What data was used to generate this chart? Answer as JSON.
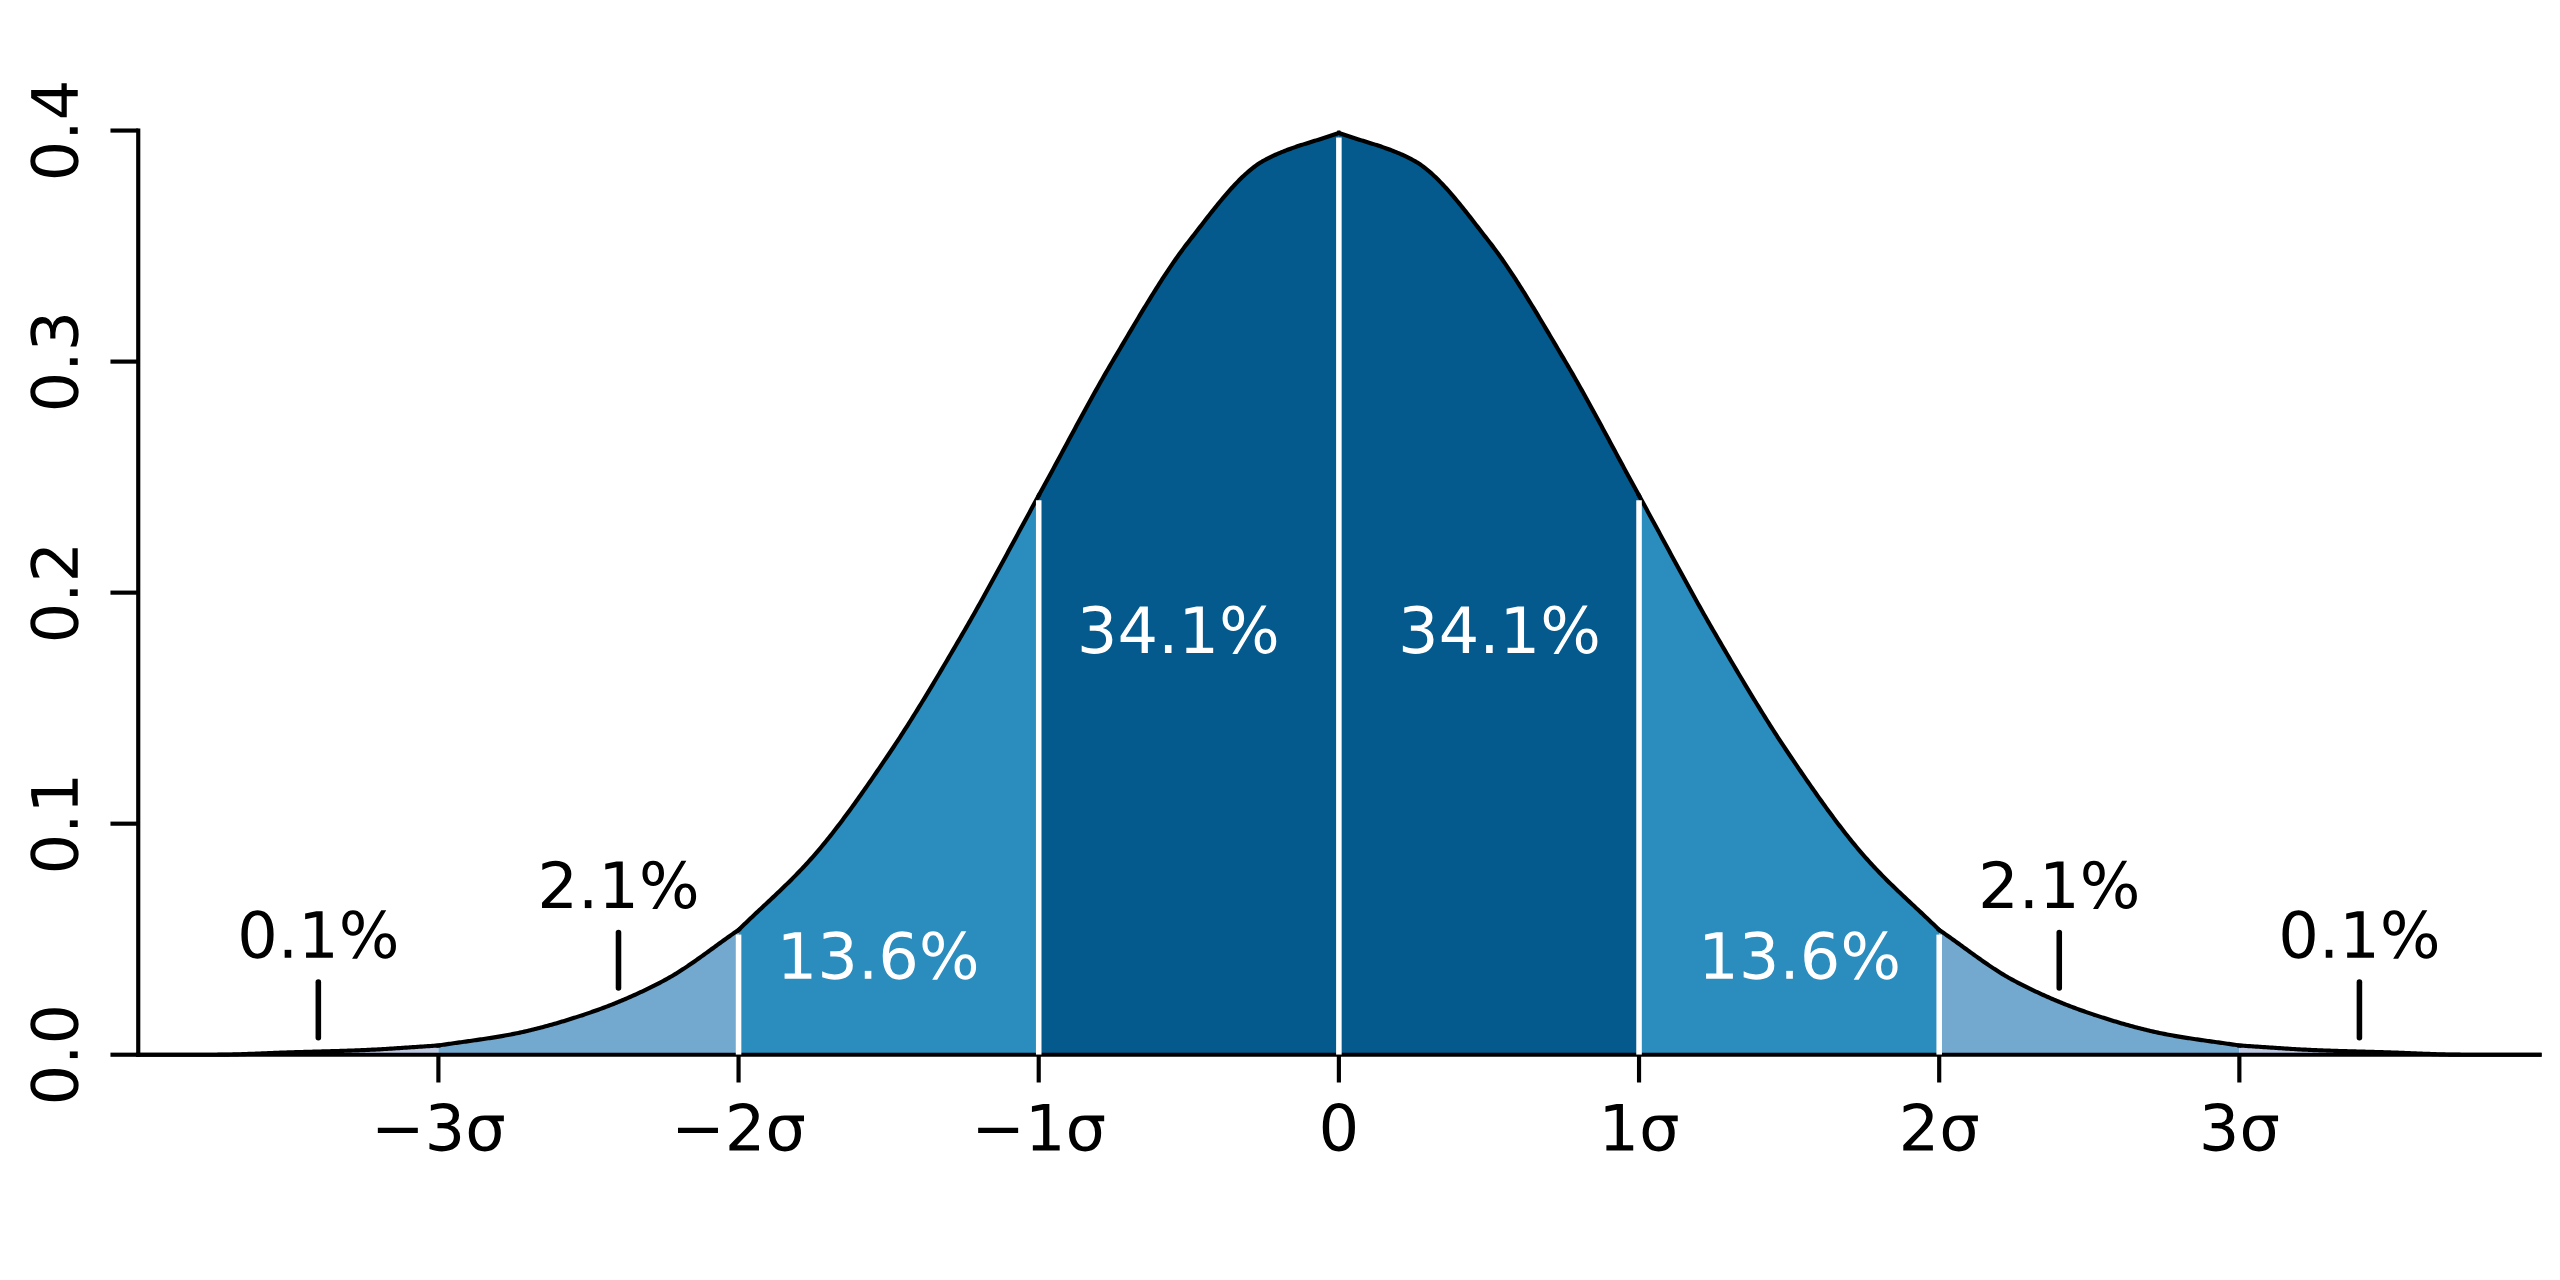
{
  "chart_data": {
    "type": "area",
    "series": [
      {
        "color": "#bdc9e1",
        "x": [
          -4,
          -3.75,
          -3.5,
          -3.25,
          -3
        ],
        "values": [
          0.0,
          0.0,
          0.001,
          0.002,
          0.004
        ]
      },
      {
        "color": "#74a9cf",
        "x": [
          -3,
          -2.75,
          -2.5,
          -2.25,
          -2
        ],
        "values": [
          0.004,
          0.009,
          0.018,
          0.032,
          0.054
        ]
      },
      {
        "color": "#2b8cbe",
        "x": [
          -2,
          -1.75,
          -1.5,
          -1.25,
          -1
        ],
        "values": [
          0.054,
          0.086,
          0.13,
          0.183,
          0.242
        ]
      },
      {
        "color": "#045a8d",
        "x": [
          -1,
          -0.75,
          -0.5,
          -0.25,
          0
        ],
        "values": [
          0.242,
          0.301,
          0.352,
          0.387,
          0.399
        ]
      },
      {
        "color": "#045a8d",
        "x": [
          0,
          0.25,
          0.5,
          0.75,
          1
        ],
        "values": [
          0.399,
          0.387,
          0.352,
          0.301,
          0.242
        ]
      },
      {
        "color": "#2b8cbe",
        "x": [
          1,
          1.25,
          1.5,
          1.75,
          2
        ],
        "values": [
          0.242,
          0.183,
          0.13,
          0.086,
          0.054
        ]
      },
      {
        "color": "#74a9cf",
        "x": [
          2,
          2.25,
          2.5,
          2.75,
          3
        ],
        "values": [
          0.054,
          0.032,
          0.018,
          0.009,
          0.004
        ]
      },
      {
        "color": "#bdc9e1",
        "x": [
          3,
          3.25,
          3.5,
          3.75,
          4
        ],
        "values": [
          0.004,
          0.002,
          0.001,
          0.0,
          0.0
        ]
      }
    ],
    "xlim": [
      -4,
      4
    ],
    "ylim": [
      0,
      0.4
    ],
    "xticks": [
      {
        "value": -3,
        "label": "−3σ"
      },
      {
        "value": -2,
        "label": "−2σ"
      },
      {
        "value": -1,
        "label": "−1σ"
      },
      0,
      {
        "value": 1,
        "label": "1σ"
      },
      {
        "value": 2,
        "label": "2σ"
      },
      {
        "value": 3,
        "label": "3σ"
      }
    ],
    "yticks": [
      {
        "value": 0,
        "label": "0.0"
      },
      {
        "value": 0.1,
        "label": "0.1"
      },
      {
        "value": 0.2,
        "label": "0.2"
      },
      {
        "value": 0.3,
        "label": "0.3"
      },
      {
        "value": 0.4,
        "label": "0.4"
      }
    ],
    "ref_lines": [
      {
        "axis": "x",
        "value": -2,
        "color": "#ffffff"
      },
      {
        "axis": "x",
        "value": -1,
        "color": "#ffffff"
      },
      {
        "axis": "x",
        "value": 0,
        "color": "#ffffff"
      },
      {
        "axis": "x",
        "value": 1,
        "color": "#ffffff"
      },
      {
        "axis": "x",
        "value": 2,
        "color": "#ffffff"
      }
    ],
    "annotations": [
      "0.1%",
      "2.1%",
      "13.6%",
      "34.1%",
      "34.1%",
      "13.6%",
      "2.1%",
      "0.1%"
    ],
    "grid": false
  }
}
